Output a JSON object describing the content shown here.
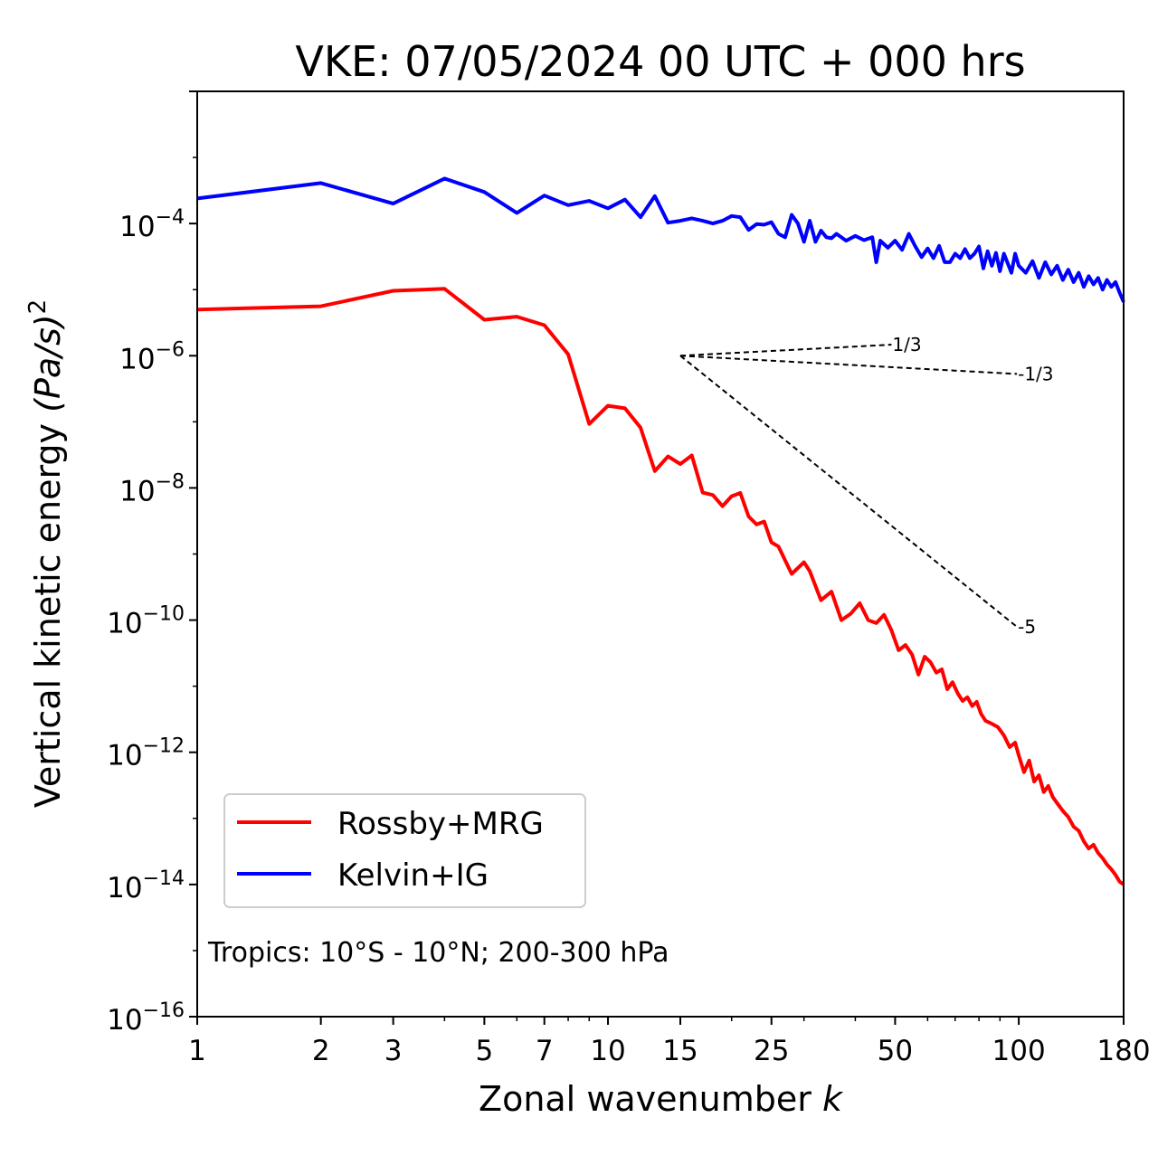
{
  "chart_data": {
    "type": "line",
    "title": "VKE: 07/05/2024 00 UTC + 000 hrs",
    "xlabel": "Zonal wavenumber",
    "xlabel_var": "k",
    "ylabel": "Vertical kinetic energy",
    "ylabel_units": "(Pa/s)",
    "ylabel_sup": "2",
    "xscale": "log",
    "yscale": "log",
    "xlim": [
      1,
      180
    ],
    "ylim": [
      1e-16,
      0.01
    ],
    "x_ticks": [
      1,
      2,
      3,
      5,
      7,
      10,
      15,
      25,
      50,
      100,
      180
    ],
    "x_tick_labels": [
      "1",
      "2",
      "3",
      "5",
      "7",
      "10",
      "15",
      "25",
      "50",
      "100",
      "180"
    ],
    "y_ticks": [
      {
        "value": 0.0001,
        "base": "10",
        "exp": "−4"
      },
      {
        "value": 1e-06,
        "base": "10",
        "exp": "−6"
      },
      {
        "value": 1e-08,
        "base": "10",
        "exp": "−8"
      },
      {
        "value": 1e-10,
        "base": "10",
        "exp": "−10"
      },
      {
        "value": 1e-12,
        "base": "10",
        "exp": "−12"
      },
      {
        "value": 1e-14,
        "base": "10",
        "exp": "−14"
      },
      {
        "value": 1e-16,
        "base": "10",
        "exp": "−16"
      }
    ],
    "grid": false,
    "legend_position": "lower-left",
    "annotation": "Tropics: 10°S - 10°N; 200-300 hPa",
    "series": [
      {
        "name": "Rossby+MRG",
        "color": "#ff0000",
        "points": [
          [
            1,
            5e-06
          ],
          [
            2,
            5.6e-06
          ],
          [
            3,
            9.6e-06
          ],
          [
            4,
            1.03e-05
          ],
          [
            5,
            3.5e-06
          ],
          [
            6,
            3.9e-06
          ],
          [
            7,
            2.9e-06
          ],
          [
            8,
            1.05e-06
          ],
          [
            9,
            9.3e-08
          ],
          [
            10,
            1.75e-07
          ],
          [
            11,
            1.6e-07
          ],
          [
            12,
            8.2e-08
          ],
          [
            13,
            1.8e-08
          ],
          [
            14,
            3e-08
          ],
          [
            15,
            2.3e-08
          ],
          [
            16,
            3.1e-08
          ],
          [
            17,
            8.5e-09
          ],
          [
            18,
            7.8e-09
          ],
          [
            19,
            5.3e-09
          ],
          [
            20,
            7.5e-09
          ],
          [
            21,
            8.4e-09
          ],
          [
            22,
            3.7e-09
          ],
          [
            23,
            2.8e-09
          ],
          [
            24,
            3.1e-09
          ],
          [
            25,
            1.5e-09
          ],
          [
            26,
            1.3e-09
          ],
          [
            28,
            5e-10
          ],
          [
            30,
            7.5e-10
          ],
          [
            31,
            5.5e-10
          ],
          [
            33,
            2e-10
          ],
          [
            35,
            2.7e-10
          ],
          [
            37,
            1e-10
          ],
          [
            39,
            1.25e-10
          ],
          [
            41,
            1.8e-10
          ],
          [
            43,
            1e-10
          ],
          [
            45,
            9e-11
          ],
          [
            47,
            1.2e-10
          ],
          [
            49,
            7e-11
          ],
          [
            51,
            3.5e-11
          ],
          [
            53,
            4.2e-11
          ],
          [
            55,
            3e-11
          ],
          [
            57,
            1.5e-11
          ],
          [
            59,
            2.8e-11
          ],
          [
            61,
            2.3e-11
          ],
          [
            63,
            1.6e-11
          ],
          [
            65,
            1.8e-11
          ],
          [
            67,
            9e-12
          ],
          [
            69,
            1.15e-11
          ],
          [
            71,
            7.8e-12
          ],
          [
            73,
            6e-12
          ],
          [
            75,
            6.8e-12
          ],
          [
            77,
            5e-12
          ],
          [
            79,
            5.8e-12
          ],
          [
            81,
            3.8e-12
          ],
          [
            83,
            3e-12
          ],
          [
            86,
            2.7e-12
          ],
          [
            89,
            2.4e-12
          ],
          [
            92,
            1.8e-12
          ],
          [
            95,
            1.2e-12
          ],
          [
            98,
            1.4e-12
          ],
          [
            100,
            9e-13
          ],
          [
            103,
            5e-13
          ],
          [
            106,
            7.5e-13
          ],
          [
            109,
            3.6e-13
          ],
          [
            112,
            4.5e-13
          ],
          [
            115,
            2.5e-13
          ],
          [
            118,
            3.1e-13
          ],
          [
            121,
            2.1e-13
          ],
          [
            124,
            1.7e-13
          ],
          [
            128,
            1.3e-13
          ],
          [
            132,
            1.05e-13
          ],
          [
            136,
            7.5e-14
          ],
          [
            140,
            6.5e-14
          ],
          [
            144,
            4.5e-14
          ],
          [
            148,
            3.5e-14
          ],
          [
            152,
            4e-14
          ],
          [
            156,
            3e-14
          ],
          [
            160,
            2.5e-14
          ],
          [
            164,
            2e-14
          ],
          [
            168,
            1.7e-14
          ],
          [
            172,
            1.4e-14
          ],
          [
            176,
            1.1e-14
          ],
          [
            180,
            1e-14
          ]
        ]
      },
      {
        "name": "Kelvin+IG",
        "color": "#0000ff",
        "points": [
          [
            1,
            0.00024
          ],
          [
            2,
            0.00041
          ],
          [
            3,
            0.0002
          ],
          [
            4,
            0.00048
          ],
          [
            5,
            0.0003
          ],
          [
            6,
            0.000145
          ],
          [
            7,
            0.000265
          ],
          [
            8,
            0.00019
          ],
          [
            9,
            0.00022
          ],
          [
            10,
            0.00017
          ],
          [
            11,
            0.00023
          ],
          [
            12,
            0.000125
          ],
          [
            13,
            0.00026
          ],
          [
            14,
            0.000103
          ],
          [
            15,
            0.00011
          ],
          [
            16,
            0.00012
          ],
          [
            17,
            0.00011
          ],
          [
            18,
            0.0001
          ],
          [
            19,
            0.00011
          ],
          [
            20,
            0.00013
          ],
          [
            21,
            0.000125
          ],
          [
            22,
            8e-05
          ],
          [
            23,
            9.8e-05
          ],
          [
            24,
            9.6e-05
          ],
          [
            25,
            0.000105
          ],
          [
            26,
            7e-05
          ],
          [
            27,
            6.2e-05
          ],
          [
            28,
            0.000135
          ],
          [
            29,
            0.0001
          ],
          [
            30,
            5.3e-05
          ],
          [
            31,
            0.00011
          ],
          [
            32,
            5.3e-05
          ],
          [
            33,
            7.8e-05
          ],
          [
            34,
            6.2e-05
          ],
          [
            35,
            6e-05
          ],
          [
            36,
            7e-05
          ],
          [
            38,
            5.5e-05
          ],
          [
            40,
            6.5e-05
          ],
          [
            42,
            5.6e-05
          ],
          [
            44,
            6.2e-05
          ],
          [
            45,
            2.6e-05
          ],
          [
            46,
            5.5e-05
          ],
          [
            48,
            4.3e-05
          ],
          [
            50,
            5.5e-05
          ],
          [
            52,
            4e-05
          ],
          [
            54,
            7e-05
          ],
          [
            56,
            4.5e-05
          ],
          [
            58,
            3.1e-05
          ],
          [
            60,
            4.2e-05
          ],
          [
            62,
            3e-05
          ],
          [
            64,
            4.6e-05
          ],
          [
            66,
            2.6e-05
          ],
          [
            68,
            2.6e-05
          ],
          [
            70,
            3.5e-05
          ],
          [
            72,
            3e-05
          ],
          [
            74,
            4.1e-05
          ],
          [
            76,
            3e-05
          ],
          [
            78,
            3.5e-05
          ],
          [
            80,
            4.5e-05
          ],
          [
            82,
            2.1e-05
          ],
          [
            84,
            3.8e-05
          ],
          [
            86,
            2.3e-05
          ],
          [
            88,
            3.6e-05
          ],
          [
            90,
            1.9e-05
          ],
          [
            92,
            3.5e-05
          ],
          [
            94,
            2.5e-05
          ],
          [
            96,
            1.8e-05
          ],
          [
            98,
            3.5e-05
          ],
          [
            100,
            2.3e-05
          ],
          [
            104,
            1.8e-05
          ],
          [
            108,
            2.7e-05
          ],
          [
            112,
            1.5e-05
          ],
          [
            116,
            2.6e-05
          ],
          [
            120,
            1.7e-05
          ],
          [
            124,
            2.3e-05
          ],
          [
            128,
            1.4e-05
          ],
          [
            132,
            2e-05
          ],
          [
            136,
            1.3e-05
          ],
          [
            140,
            1.8e-05
          ],
          [
            144,
            1.1e-05
          ],
          [
            148,
            1.6e-05
          ],
          [
            152,
            1.2e-05
          ],
          [
            156,
            1.5e-05
          ],
          [
            160,
            1e-05
          ],
          [
            164,
            1.4e-05
          ],
          [
            168,
            1.1e-05
          ],
          [
            172,
            1.3e-05
          ],
          [
            176,
            9e-06
          ],
          [
            180,
            6.5e-06
          ]
        ]
      }
    ],
    "reference_lines": [
      {
        "label": "1/3",
        "points": [
          [
            15,
            1e-06
          ],
          [
            49,
            1.47e-06
          ]
        ]
      },
      {
        "label": "-1/3",
        "points": [
          [
            15,
            1e-06
          ],
          [
            99,
            5.3e-07
          ]
        ]
      },
      {
        "label": "-5",
        "points": [
          [
            15,
            1e-06
          ],
          [
            99,
            7.9e-11
          ]
        ]
      }
    ]
  }
}
